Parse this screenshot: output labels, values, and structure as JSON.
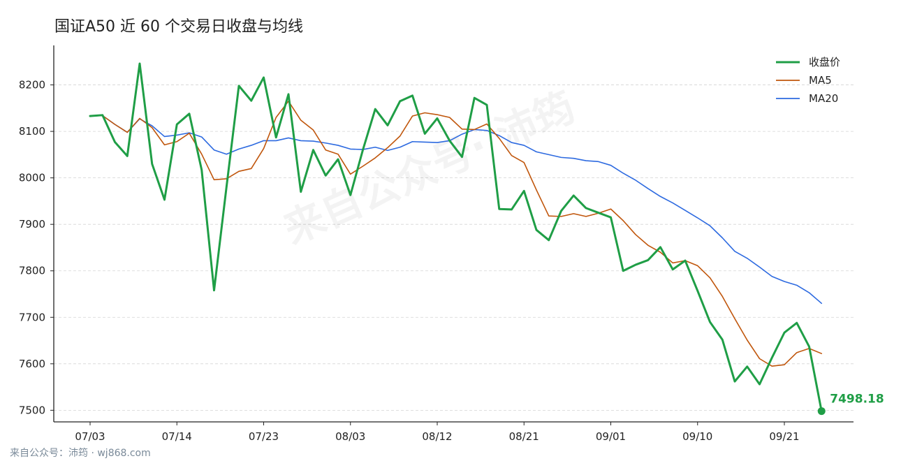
{
  "chart_data": {
    "type": "line",
    "title": "国证A50 近 60 个交易日收盘与均线",
    "xlabel": "",
    "ylabel": "",
    "ylim": [
      7475,
      8285
    ],
    "yticks": [
      7500,
      7600,
      7700,
      7800,
      7900,
      8000,
      8100,
      8200
    ],
    "xtick_labels": [
      "07/03",
      "07/14",
      "07/23",
      "08/03",
      "08/12",
      "08/21",
      "09/01",
      "09/10",
      "09/21"
    ],
    "xtick_index": [
      0,
      7,
      14,
      21,
      28,
      35,
      42,
      49,
      56
    ],
    "grid": "horizontal dashed",
    "legend_position": "top-right",
    "series": [
      {
        "name": "收盘价",
        "color": "#1f9e46",
        "values": [
          8133,
          8135,
          8077,
          8047,
          8246,
          8030,
          7953,
          8115,
          8138,
          8017,
          7758,
          7980,
          8198,
          8166,
          8216,
          8087,
          8180,
          7970,
          8060,
          8005,
          8040,
          7963,
          8060,
          8148,
          8113,
          8165,
          8177,
          8095,
          8128,
          8080,
          8045,
          8172,
          8157,
          7933,
          7932,
          7972,
          7888,
          7866,
          7929,
          7962,
          7935,
          7925,
          7915,
          7800,
          7813,
          7823,
          7851,
          7803,
          7822,
          7757,
          7690,
          7652,
          7562,
          7594,
          7556,
          7613,
          7667,
          7688,
          7637,
          7498.18
        ]
      },
      {
        "name": "MA5",
        "color": "#c0560c",
        "values": [
          8133,
          8134,
          8115,
          8098,
          8128,
          8108,
          8071,
          8078,
          8096,
          8051,
          7996,
          7998,
          8014,
          8020,
          8063,
          8130,
          8165,
          8124,
          8103,
          8060,
          8051,
          8008,
          8025,
          8043,
          8065,
          8090,
          8133,
          8140,
          8136,
          8130,
          8105,
          8104,
          8116,
          8085,
          8048,
          8033,
          7974,
          7918,
          7917,
          7923,
          7917,
          7924,
          7933,
          7908,
          7878,
          7855,
          7840,
          7817,
          7822,
          7811,
          7785,
          7745,
          7697,
          7651,
          7611,
          7595,
          7598,
          7624,
          7633,
          7622
        ]
      },
      {
        "name": "MA20",
        "color": "#2d6ae0",
        "values": [
          8133,
          8134,
          8115,
          8098,
          8127,
          8112,
          8089,
          8092,
          8097,
          8088,
          8060,
          8051,
          8062,
          8070,
          8080,
          8080,
          8086,
          8080,
          8079,
          8075,
          8070,
          8062,
          8061,
          8066,
          8059,
          8066,
          8078,
          8077,
          8076,
          8080,
          8094,
          8104,
          8102,
          8091,
          8076,
          8070,
          8056,
          8050,
          8044,
          8042,
          8037,
          8035,
          8027,
          8010,
          7995,
          7977,
          7960,
          7946,
          7930,
          7914,
          7897,
          7871,
          7842,
          7827,
          7808,
          7788,
          7777,
          7769,
          7753,
          7730
        ]
      }
    ],
    "last_value_label": "7498.18"
  },
  "watermark": "来自公众号· 沛筠",
  "footer": "来自公众号：沛筠 · wj868.com"
}
